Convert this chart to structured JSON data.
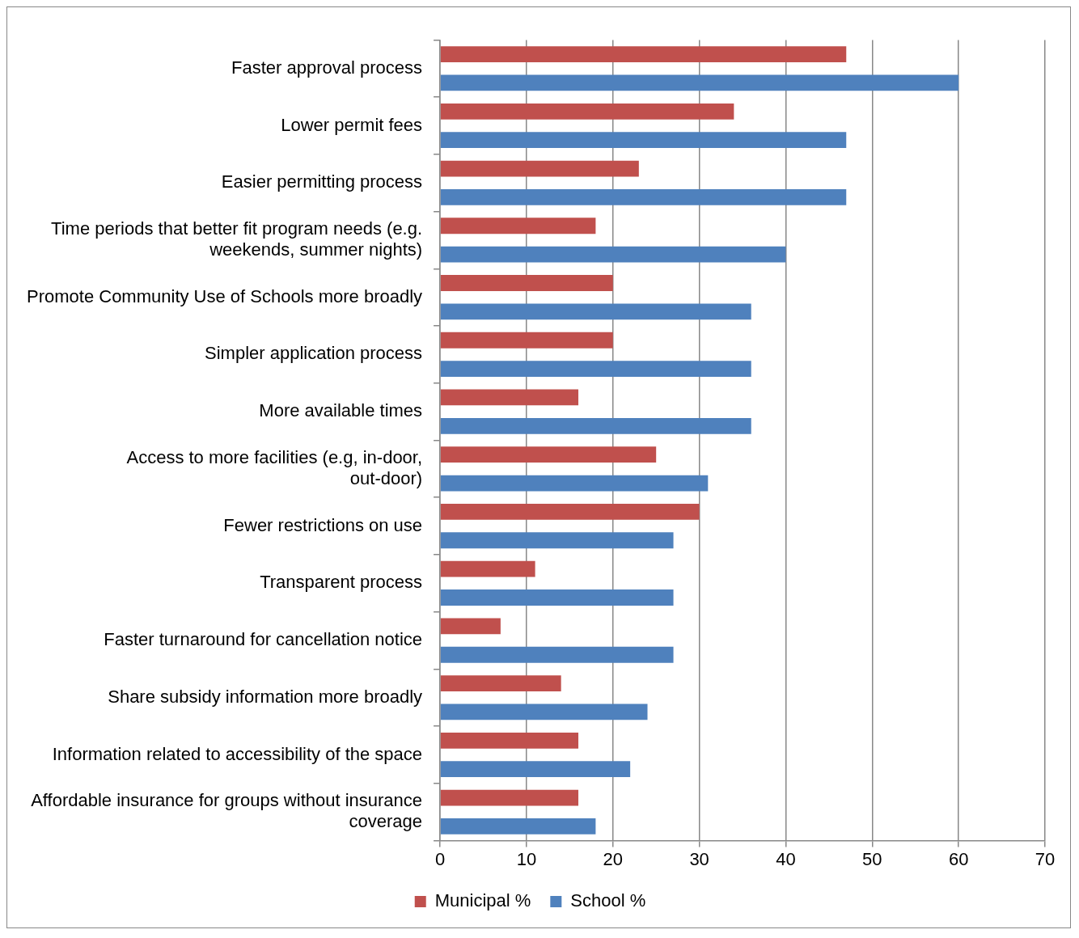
{
  "chart_data": {
    "type": "bar",
    "orientation": "horizontal",
    "categories": [
      "Faster approval process",
      "Lower permit fees",
      "Easier permitting process",
      "Time periods that better fit program needs (e.g. weekends, summer nights)",
      "Promote Community Use of Schools more broadly",
      "Simpler application process",
      "More available times",
      "Access to more facilities (e.g, in-door, out-door)",
      "Fewer restrictions on use",
      "Transparent process",
      "Faster turnaround for cancellation notice",
      "Share subsidy information more broadly",
      "Information related to accessibility of the space",
      "Affordable insurance for groups without insurance coverage"
    ],
    "series": [
      {
        "name": "Municipal %",
        "color": "#c0504d",
        "values": [
          47,
          34,
          23,
          18,
          20,
          20,
          16,
          25,
          30,
          11,
          7,
          14,
          16,
          16
        ]
      },
      {
        "name": "School %",
        "color": "#4f81bd",
        "values": [
          60,
          47,
          47,
          40,
          36,
          36,
          36,
          31,
          27,
          27,
          27,
          24,
          22,
          18
        ]
      }
    ],
    "xlim": [
      0,
      70
    ],
    "xticks": [
      0,
      10,
      20,
      30,
      40,
      50,
      60,
      70
    ],
    "grid": "x",
    "legend": "bottom"
  }
}
